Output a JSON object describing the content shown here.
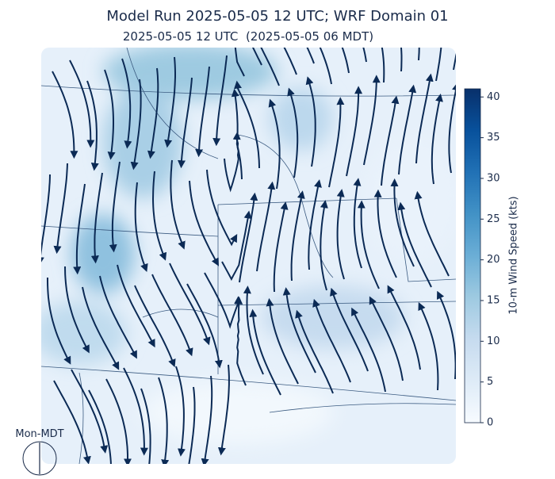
{
  "title": "Model Run 2025-05-05 12 UTC; WRF Domain 01",
  "subtitle": "2025-05-05 12 UTC  (2025-05-05 06 MDT)",
  "colorbar": {
    "label": "10-m Wind Speed (kts)",
    "lim": [
      0,
      41
    ],
    "ticks": [
      0,
      5,
      10,
      15,
      20,
      25,
      30,
      35,
      40
    ],
    "colormap": [
      "#f7fbff",
      "#deebf7",
      "#c6dbef",
      "#9ecae1",
      "#6baed6",
      "#4292c6",
      "#2171b5",
      "#08519c",
      "#08306b"
    ]
  },
  "clock_label": "Mon-MDT"
}
